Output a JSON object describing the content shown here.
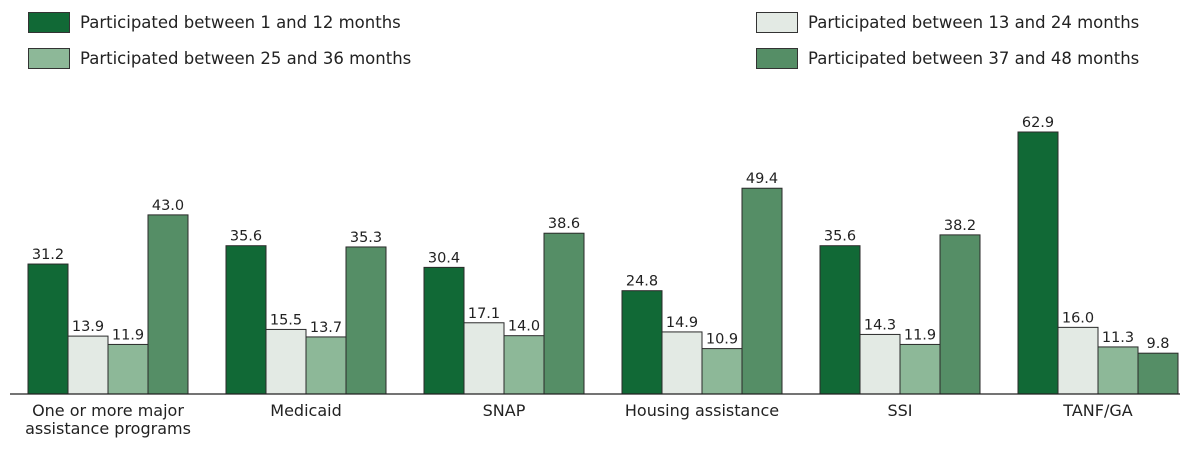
{
  "chart_data": {
    "type": "bar",
    "categories": [
      "One or more major assistance programs",
      "Medicaid",
      "SNAP",
      "Housing assistance",
      "SSI",
      "TANF/GA"
    ],
    "series": [
      {
        "name": "Participated between 1 and 12 months",
        "color": "#116936",
        "values": [
          31.2,
          35.6,
          30.4,
          24.8,
          35.6,
          62.9
        ]
      },
      {
        "name": "Participated between 13 and 24 months",
        "color": "#e3eae4",
        "values": [
          13.9,
          15.5,
          17.1,
          14.9,
          14.3,
          16.0
        ],
        "value_labels": [
          "13.9",
          "15.5",
          "17.1",
          "14.9",
          "14.3",
          "16.0"
        ]
      },
      {
        "name": "Participated between 25 and 36 months",
        "color": "#8db898",
        "values": [
          11.9,
          13.7,
          14.0,
          10.9,
          11.9,
          11.3
        ],
        "value_labels": [
          "11.9",
          "13.7",
          "14.0",
          "10.9",
          "11.9",
          "11.3"
        ]
      },
      {
        "name": "Participated between 37 and 48 months",
        "color": "#558e66",
        "values": [
          43.0,
          35.3,
          38.6,
          49.4,
          38.2,
          9.8
        ],
        "value_labels": [
          "43.0",
          "35.3",
          "38.6",
          "49.4",
          "38.2",
          "9.8"
        ]
      }
    ]
  }
}
